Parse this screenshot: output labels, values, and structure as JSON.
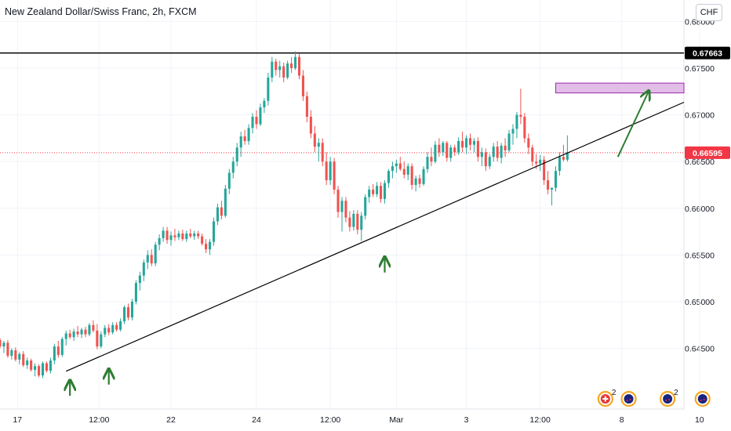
{
  "title": "New Zealand Dollar/Swiss Franc, 2h, FXCM",
  "currency_button": "CHF",
  "colors": {
    "up": "#26a69a",
    "down": "#ef5350",
    "grid": "#f0f3fa",
    "axis_text": "#131722",
    "resistance_tag": "#000000",
    "price_tag": "#f23645",
    "box_fill": "#e1bee7",
    "box_stroke": "#9c27b0",
    "arrow": "#2e7d32"
  },
  "chart_data": {
    "type": "candlestick",
    "title": "New Zealand Dollar/Swiss Franc, 2h, FXCM",
    "x_tick_labels": [
      "17",
      "12:00",
      "22",
      "24",
      "12:00",
      "Mar",
      "3",
      "12:00",
      "8",
      "10"
    ],
    "y_tick_labels": [
      "0.68000",
      "0.67500",
      "0.67000",
      "0.66500",
      "0.66000",
      "0.65500",
      "0.65000",
      "0.64500"
    ],
    "ylim": [
      0.6385,
      0.6823
    ],
    "x_range_bars": [
      0,
      176
    ],
    "current_price": "0.66595",
    "resistance_label": "0.67663",
    "candles": [
      [
        0.6459,
        0.6461,
        0.645,
        0.6452
      ],
      [
        0.6452,
        0.6458,
        0.6445,
        0.6456
      ],
      [
        0.6456,
        0.6459,
        0.644,
        0.6442
      ],
      [
        0.6442,
        0.645,
        0.6438,
        0.6448
      ],
      [
        0.6448,
        0.6451,
        0.6436,
        0.6438
      ],
      [
        0.6438,
        0.6446,
        0.6433,
        0.6444
      ],
      [
        0.6444,
        0.6447,
        0.643,
        0.6432
      ],
      [
        0.6432,
        0.644,
        0.6428,
        0.6437
      ],
      [
        0.6437,
        0.6439,
        0.6425,
        0.6427
      ],
      [
        0.6427,
        0.6434,
        0.642,
        0.6431
      ],
      [
        0.6431,
        0.6433,
        0.6419,
        0.6421
      ],
      [
        0.6421,
        0.6436,
        0.6418,
        0.6434
      ],
      [
        0.6434,
        0.6436,
        0.6424,
        0.6426
      ],
      [
        0.6426,
        0.644,
        0.6423,
        0.6437
      ],
      [
        0.6437,
        0.6455,
        0.6433,
        0.6452
      ],
      [
        0.6452,
        0.6458,
        0.644,
        0.6443
      ],
      [
        0.6443,
        0.6462,
        0.6441,
        0.646
      ],
      [
        0.646,
        0.6469,
        0.6453,
        0.6466
      ],
      [
        0.6466,
        0.647,
        0.646,
        0.6462
      ],
      [
        0.6462,
        0.6471,
        0.6458,
        0.6468
      ],
      [
        0.6468,
        0.6474,
        0.6462,
        0.6465
      ],
      [
        0.6465,
        0.6472,
        0.6461,
        0.647
      ],
      [
        0.647,
        0.6473,
        0.6462,
        0.6465
      ],
      [
        0.6465,
        0.6477,
        0.6463,
        0.6475
      ],
      [
        0.6475,
        0.648,
        0.6467,
        0.6469
      ],
      [
        0.6469,
        0.6476,
        0.6449,
        0.6452
      ],
      [
        0.6452,
        0.6468,
        0.645,
        0.6465
      ],
      [
        0.6465,
        0.6475,
        0.6462,
        0.6472
      ],
      [
        0.6472,
        0.6476,
        0.6464,
        0.6467
      ],
      [
        0.6467,
        0.6478,
        0.6465,
        0.6475
      ],
      [
        0.6475,
        0.6478,
        0.6468,
        0.647
      ],
      [
        0.647,
        0.6482,
        0.6468,
        0.6479
      ],
      [
        0.6479,
        0.6496,
        0.6476,
        0.6494
      ],
      [
        0.6494,
        0.6498,
        0.648,
        0.6483
      ],
      [
        0.6483,
        0.6503,
        0.648,
        0.65
      ],
      [
        0.65,
        0.6523,
        0.6497,
        0.652
      ],
      [
        0.652,
        0.6532,
        0.6512,
        0.6528
      ],
      [
        0.6528,
        0.6545,
        0.6522,
        0.6542
      ],
      [
        0.6542,
        0.6555,
        0.6535,
        0.655
      ],
      [
        0.655,
        0.6556,
        0.6538,
        0.6541
      ],
      [
        0.6541,
        0.6564,
        0.6538,
        0.6561
      ],
      [
        0.6561,
        0.6572,
        0.6555,
        0.6568
      ],
      [
        0.6568,
        0.658,
        0.6564,
        0.6576
      ],
      [
        0.6576,
        0.658,
        0.6562,
        0.6566
      ],
      [
        0.6566,
        0.6575,
        0.656,
        0.6571
      ],
      [
        0.6571,
        0.6578,
        0.6565,
        0.6569
      ],
      [
        0.6569,
        0.6576,
        0.6566,
        0.6573
      ],
      [
        0.6573,
        0.6577,
        0.6565,
        0.6567
      ],
      [
        0.6567,
        0.6576,
        0.6564,
        0.6573
      ],
      [
        0.6573,
        0.6578,
        0.6568,
        0.657
      ],
      [
        0.657,
        0.6576,
        0.6566,
        0.6573
      ],
      [
        0.6573,
        0.6576,
        0.6567,
        0.657
      ],
      [
        0.657,
        0.6573,
        0.656,
        0.6562
      ],
      [
        0.6562,
        0.6567,
        0.6552,
        0.6556
      ],
      [
        0.6556,
        0.6567,
        0.655,
        0.6564
      ],
      [
        0.6564,
        0.659,
        0.656,
        0.6586
      ],
      [
        0.6586,
        0.6605,
        0.6582,
        0.6601
      ],
      [
        0.6601,
        0.6608,
        0.6588,
        0.6592
      ],
      [
        0.6592,
        0.6625,
        0.659,
        0.6621
      ],
      [
        0.6621,
        0.6642,
        0.6615,
        0.6638
      ],
      [
        0.6638,
        0.6655,
        0.6632,
        0.665
      ],
      [
        0.665,
        0.667,
        0.6645,
        0.6665
      ],
      [
        0.6665,
        0.6682,
        0.6655,
        0.6677
      ],
      [
        0.6677,
        0.6684,
        0.6668,
        0.6672
      ],
      [
        0.6672,
        0.669,
        0.6668,
        0.6686
      ],
      [
        0.6686,
        0.6702,
        0.668,
        0.6698
      ],
      [
        0.6698,
        0.6705,
        0.6685,
        0.669
      ],
      [
        0.669,
        0.6712,
        0.6688,
        0.6708
      ],
      [
        0.6708,
        0.6718,
        0.6702,
        0.6715
      ],
      [
        0.6715,
        0.6745,
        0.671,
        0.674
      ],
      [
        0.674,
        0.6762,
        0.6735,
        0.6757
      ],
      [
        0.6757,
        0.676,
        0.6742,
        0.6748
      ],
      [
        0.6748,
        0.6758,
        0.674,
        0.6752
      ],
      [
        0.6752,
        0.6756,
        0.6735,
        0.674
      ],
      [
        0.674,
        0.6758,
        0.6738,
        0.6755
      ],
      [
        0.6755,
        0.6762,
        0.6745,
        0.675
      ],
      [
        0.675,
        0.6768,
        0.6748,
        0.6762
      ],
      [
        0.6762,
        0.6766,
        0.6738,
        0.6742
      ],
      [
        0.6742,
        0.6748,
        0.6715,
        0.672
      ],
      [
        0.672,
        0.6725,
        0.6692,
        0.6698
      ],
      [
        0.6698,
        0.6705,
        0.6675,
        0.668
      ],
      [
        0.668,
        0.6688,
        0.666,
        0.6666
      ],
      [
        0.6666,
        0.6675,
        0.665,
        0.667
      ],
      [
        0.667,
        0.6675,
        0.6645,
        0.665
      ],
      [
        0.665,
        0.666,
        0.6625,
        0.663
      ],
      [
        0.663,
        0.6655,
        0.6625,
        0.665
      ],
      [
        0.665,
        0.6654,
        0.6615,
        0.662
      ],
      [
        0.662,
        0.6624,
        0.659,
        0.6596
      ],
      [
        0.6596,
        0.6612,
        0.6575,
        0.6608
      ],
      [
        0.6608,
        0.6612,
        0.6585,
        0.659
      ],
      [
        0.659,
        0.6597,
        0.6575,
        0.658
      ],
      [
        0.658,
        0.6598,
        0.6576,
        0.6594
      ],
      [
        0.6594,
        0.6598,
        0.6572,
        0.6577
      ],
      [
        0.6577,
        0.6596,
        0.6565,
        0.6592
      ],
      [
        0.6592,
        0.6615,
        0.6588,
        0.6612
      ],
      [
        0.6612,
        0.6624,
        0.6606,
        0.662
      ],
      [
        0.662,
        0.6626,
        0.6612,
        0.6615
      ],
      [
        0.6615,
        0.6628,
        0.6612,
        0.6624
      ],
      [
        0.6624,
        0.6628,
        0.6606,
        0.661
      ],
      [
        0.661,
        0.663,
        0.6605,
        0.6627
      ],
      [
        0.6627,
        0.6642,
        0.6622,
        0.664
      ],
      [
        0.664,
        0.665,
        0.6632,
        0.6645
      ],
      [
        0.6645,
        0.6652,
        0.6638,
        0.6648
      ],
      [
        0.6648,
        0.6655,
        0.664,
        0.6642
      ],
      [
        0.6642,
        0.665,
        0.6632,
        0.6636
      ],
      [
        0.6636,
        0.6648,
        0.663,
        0.6645
      ],
      [
        0.6645,
        0.6648,
        0.662,
        0.6625
      ],
      [
        0.6625,
        0.6635,
        0.6618,
        0.6632
      ],
      [
        0.6632,
        0.6636,
        0.6622,
        0.6626
      ],
      [
        0.6626,
        0.6645,
        0.6624,
        0.6642
      ],
      [
        0.6642,
        0.666,
        0.6638,
        0.6655
      ],
      [
        0.6655,
        0.6665,
        0.6645,
        0.665
      ],
      [
        0.665,
        0.6672,
        0.6648,
        0.6668
      ],
      [
        0.6668,
        0.6675,
        0.6655,
        0.666
      ],
      [
        0.666,
        0.6672,
        0.6656,
        0.667
      ],
      [
        0.667,
        0.6672,
        0.665,
        0.6654
      ],
      [
        0.6654,
        0.6668,
        0.665,
        0.6665
      ],
      [
        0.6665,
        0.6668,
        0.6656,
        0.666
      ],
      [
        0.666,
        0.6676,
        0.6657,
        0.6672
      ],
      [
        0.6672,
        0.6682,
        0.666,
        0.6665
      ],
      [
        0.6665,
        0.6678,
        0.6658,
        0.6675
      ],
      [
        0.6675,
        0.668,
        0.6662,
        0.6668
      ],
      [
        0.6668,
        0.6675,
        0.666,
        0.6672
      ],
      [
        0.6672,
        0.6676,
        0.665,
        0.6655
      ],
      [
        0.6655,
        0.6665,
        0.6645,
        0.666
      ],
      [
        0.666,
        0.6664,
        0.664,
        0.6645
      ],
      [
        0.6645,
        0.6658,
        0.6642,
        0.6655
      ],
      [
        0.6655,
        0.667,
        0.665,
        0.6666
      ],
      [
        0.6666,
        0.6672,
        0.665,
        0.6654
      ],
      [
        0.6654,
        0.667,
        0.6648,
        0.6667
      ],
      [
        0.6667,
        0.6675,
        0.6655,
        0.6662
      ],
      [
        0.6662,
        0.6684,
        0.666,
        0.668
      ],
      [
        0.668,
        0.669,
        0.6668,
        0.6685
      ],
      [
        0.6685,
        0.6703,
        0.6675,
        0.67
      ],
      [
        0.67,
        0.6728,
        0.669,
        0.6698
      ],
      [
        0.6698,
        0.6702,
        0.667,
        0.6675
      ],
      [
        0.6675,
        0.668,
        0.6658,
        0.6665
      ],
      [
        0.6665,
        0.6668,
        0.6645,
        0.665
      ],
      [
        0.665,
        0.6658,
        0.6642,
        0.6648
      ],
      [
        0.6648,
        0.6657,
        0.664,
        0.6652
      ],
      [
        0.6652,
        0.6656,
        0.6625,
        0.663
      ],
      [
        0.663,
        0.664,
        0.6615,
        0.662
      ],
      [
        0.662,
        0.6622,
        0.6603,
        0.6622
      ],
      [
        0.6622,
        0.6645,
        0.6618,
        0.664
      ],
      [
        0.664,
        0.666,
        0.6635,
        0.6655
      ],
      [
        0.6655,
        0.6668,
        0.665,
        0.6652
      ],
      [
        0.6652,
        0.6678,
        0.665,
        0.666
      ]
    ],
    "annotations": {
      "resistance_line_price": 0.67663,
      "current_price_line": 0.66595,
      "target_zone": {
        "from_bar": 143,
        "to_bar": 176,
        "price_low": 0.67235,
        "price_high": 0.6734
      },
      "trendline": {
        "from": [
          17,
          0.64255
        ],
        "to": [
          176,
          0.67135
        ]
      },
      "projection_arrow": {
        "from": [
          159,
          0.6655
        ],
        "to": [
          167,
          0.6726
        ]
      },
      "touch_arrows": [
        {
          "bar": 18,
          "price": 0.6416
        },
        {
          "bar": 28,
          "price": 0.6428
        },
        {
          "bar": 99,
          "price": 0.6548
        }
      ]
    },
    "event_markers": [
      {
        "bar": 157,
        "count": "2",
        "flag": "CH"
      },
      {
        "bar": 163,
        "count": "",
        "flag": "NZ"
      },
      {
        "bar": 173,
        "count": "2",
        "flag": "NZ"
      },
      {
        "bar": 182,
        "count": "",
        "flag": "NZ"
      }
    ]
  }
}
